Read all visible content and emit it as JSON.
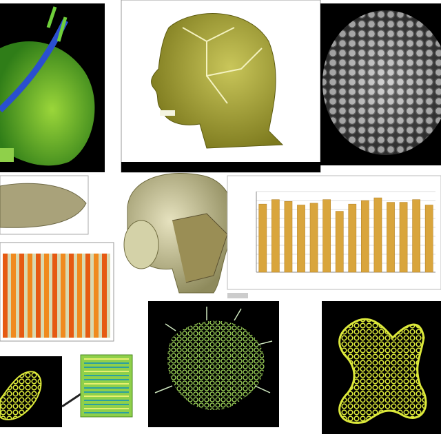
{
  "chart_data": {
    "type": "bar",
    "values": [
      7.6,
      8.1,
      7.9,
      7.5,
      7.7,
      8.1,
      6.8,
      7.6,
      8.0,
      8.3,
      7.8,
      7.8,
      8.1,
      7.5
    ],
    "color": "#d9a53c",
    "ylim": [
      0,
      9
    ],
    "yticks": [
      0,
      1,
      2,
      3,
      4,
      5,
      6,
      7,
      8,
      9
    ],
    "grid": true
  }
}
